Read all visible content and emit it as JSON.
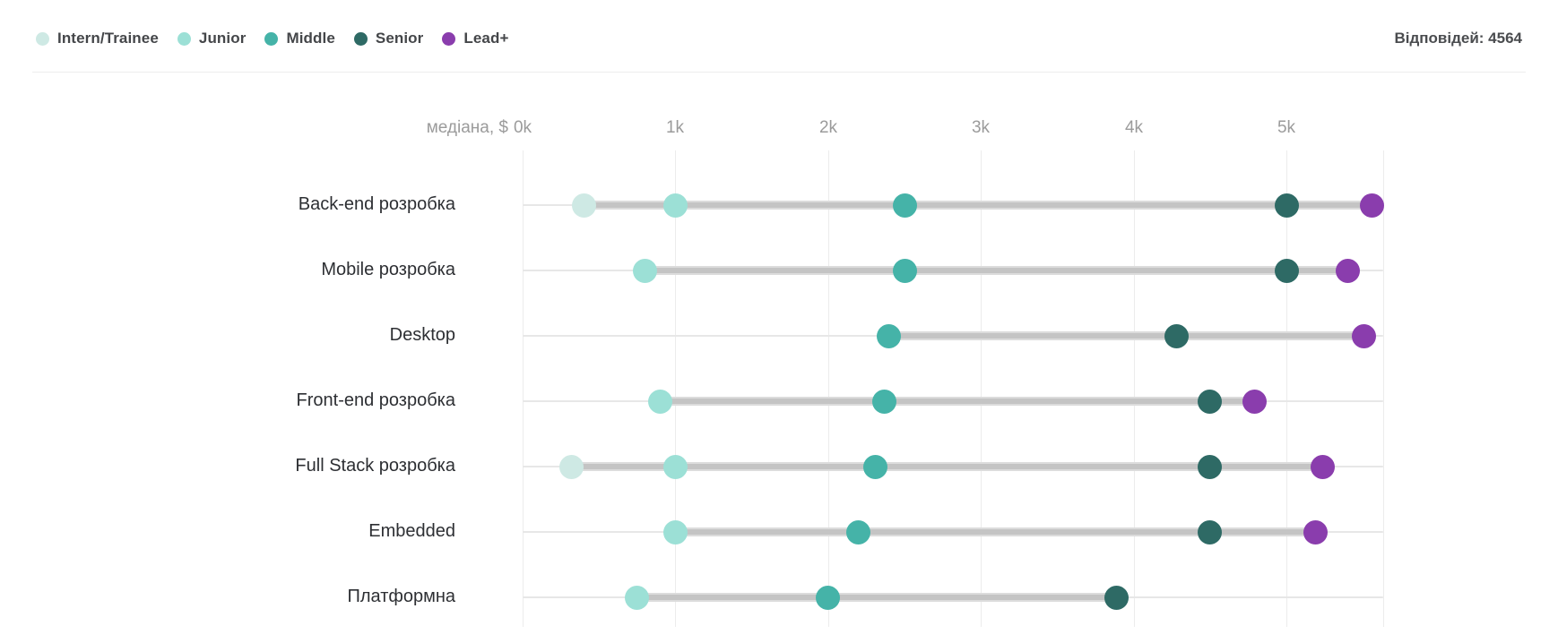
{
  "header": {
    "legend": [
      {
        "key": "intern",
        "label": "Intern/Trainee",
        "color": "#cee9e4"
      },
      {
        "key": "junior",
        "label": "Junior",
        "color": "#9ce0d6"
      },
      {
        "key": "middle",
        "label": "Middle",
        "color": "#45b3a8"
      },
      {
        "key": "senior",
        "label": "Senior",
        "color": "#2e6a65"
      },
      {
        "key": "lead",
        "label": "Lead+",
        "color": "#8a3dad"
      }
    ],
    "responses_label": "Відповідей: 4564"
  },
  "chart_data": {
    "type": "scatter",
    "subtype": "dumbbell-dot-plot",
    "axis_title": "медіана, $",
    "x_unit": "USD",
    "x_range": [
      0,
      5630
    ],
    "grid": true,
    "legend_position": "top-left",
    "x_ticks": [
      {
        "value": 0,
        "label": "0k"
      },
      {
        "value": 1000,
        "label": "1k"
      },
      {
        "value": 2000,
        "label": "2k"
      },
      {
        "value": 3000,
        "label": "3k"
      },
      {
        "value": 4000,
        "label": "4k"
      },
      {
        "value": 5000,
        "label": "5k"
      }
    ],
    "series_order": [
      "intern",
      "junior",
      "middle",
      "senior",
      "lead"
    ],
    "categories": [
      "Back-end розробка",
      "Mobile розробка",
      "Desktop",
      "Front-end розробка",
      "Full Stack розробка",
      "Embedded",
      "Платформна"
    ],
    "rows": [
      {
        "category": "Back-end розробка",
        "values": {
          "intern": 400,
          "junior": 1000,
          "middle": 2500,
          "senior": 5000,
          "lead": 5560
        }
      },
      {
        "category": "Mobile розробка",
        "values": {
          "junior": 800,
          "middle": 2500,
          "senior": 5000,
          "lead": 5400
        }
      },
      {
        "category": "Desktop",
        "values": {
          "middle": 2400,
          "senior": 4280,
          "lead": 5510
        }
      },
      {
        "category": "Front-end розробка",
        "values": {
          "junior": 900,
          "middle": 2370,
          "senior": 4500,
          "lead": 4790
        }
      },
      {
        "category": "Full Stack розробка",
        "values": {
          "intern": 320,
          "junior": 1000,
          "middle": 2310,
          "senior": 4500,
          "lead": 5240
        }
      },
      {
        "category": "Embedded",
        "values": {
          "junior": 1000,
          "middle": 2200,
          "senior": 4500,
          "lead": 5190
        }
      },
      {
        "category": "Платформна",
        "values": {
          "junior": 750,
          "middle": 2000,
          "senior": 3890
        }
      }
    ]
  }
}
